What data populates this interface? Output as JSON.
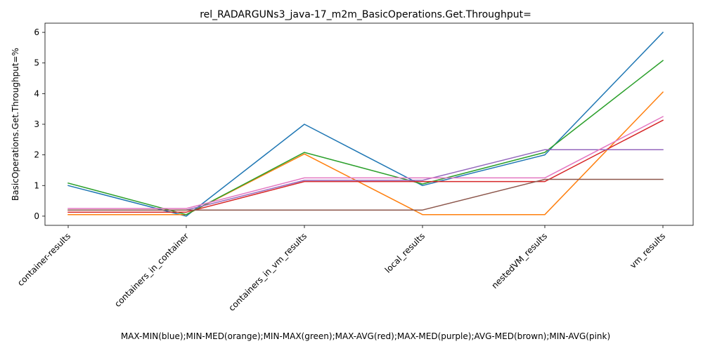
{
  "chart_data": {
    "type": "line",
    "title": "rel_RADARGUNs3_java-17_m2m_BasicOperations.Get.Throughput=",
    "xlabel": "MAX-MIN(blue);MIN-MED(orange);MIN-MAX(green);MAX-AVG(red);MAX-MED(purple);AVG-MED(brown);MIN-AVG(pink)",
    "ylabel": "BasicOperations.Get.Throughput=%",
    "categories": [
      "container-results",
      "containers_in_container",
      "containers_in_vm_results",
      "local_results",
      "nestedVM_results",
      "vm_results"
    ],
    "yticks": [
      0,
      1,
      2,
      3,
      4,
      5,
      6
    ],
    "ylim": [
      -0.3,
      6.3
    ],
    "grid": false,
    "series": [
      {
        "color": "#1f77b4",
        "values": [
          1.0,
          0.0,
          3.0,
          1.0,
          2.0,
          6.0
        ]
      },
      {
        "color": "#ff7f0e",
        "values": [
          0.05,
          0.05,
          2.03,
          0.05,
          0.05,
          4.05
        ]
      },
      {
        "color": "#2ca02c",
        "values": [
          1.08,
          0.05,
          2.08,
          1.05,
          2.08,
          5.08
        ]
      },
      {
        "color": "#d62728",
        "values": [
          0.13,
          0.13,
          1.13,
          1.13,
          1.13,
          3.13
        ]
      },
      {
        "color": "#9467bd",
        "values": [
          0.2,
          0.2,
          1.17,
          1.17,
          2.17,
          2.17
        ]
      },
      {
        "color": "#8c564b",
        "values": [
          0.2,
          0.2,
          0.2,
          0.2,
          1.2,
          1.2
        ]
      },
      {
        "color": "#e377c2",
        "values": [
          0.25,
          0.25,
          1.25,
          1.25,
          1.25,
          3.25
        ]
      }
    ]
  }
}
